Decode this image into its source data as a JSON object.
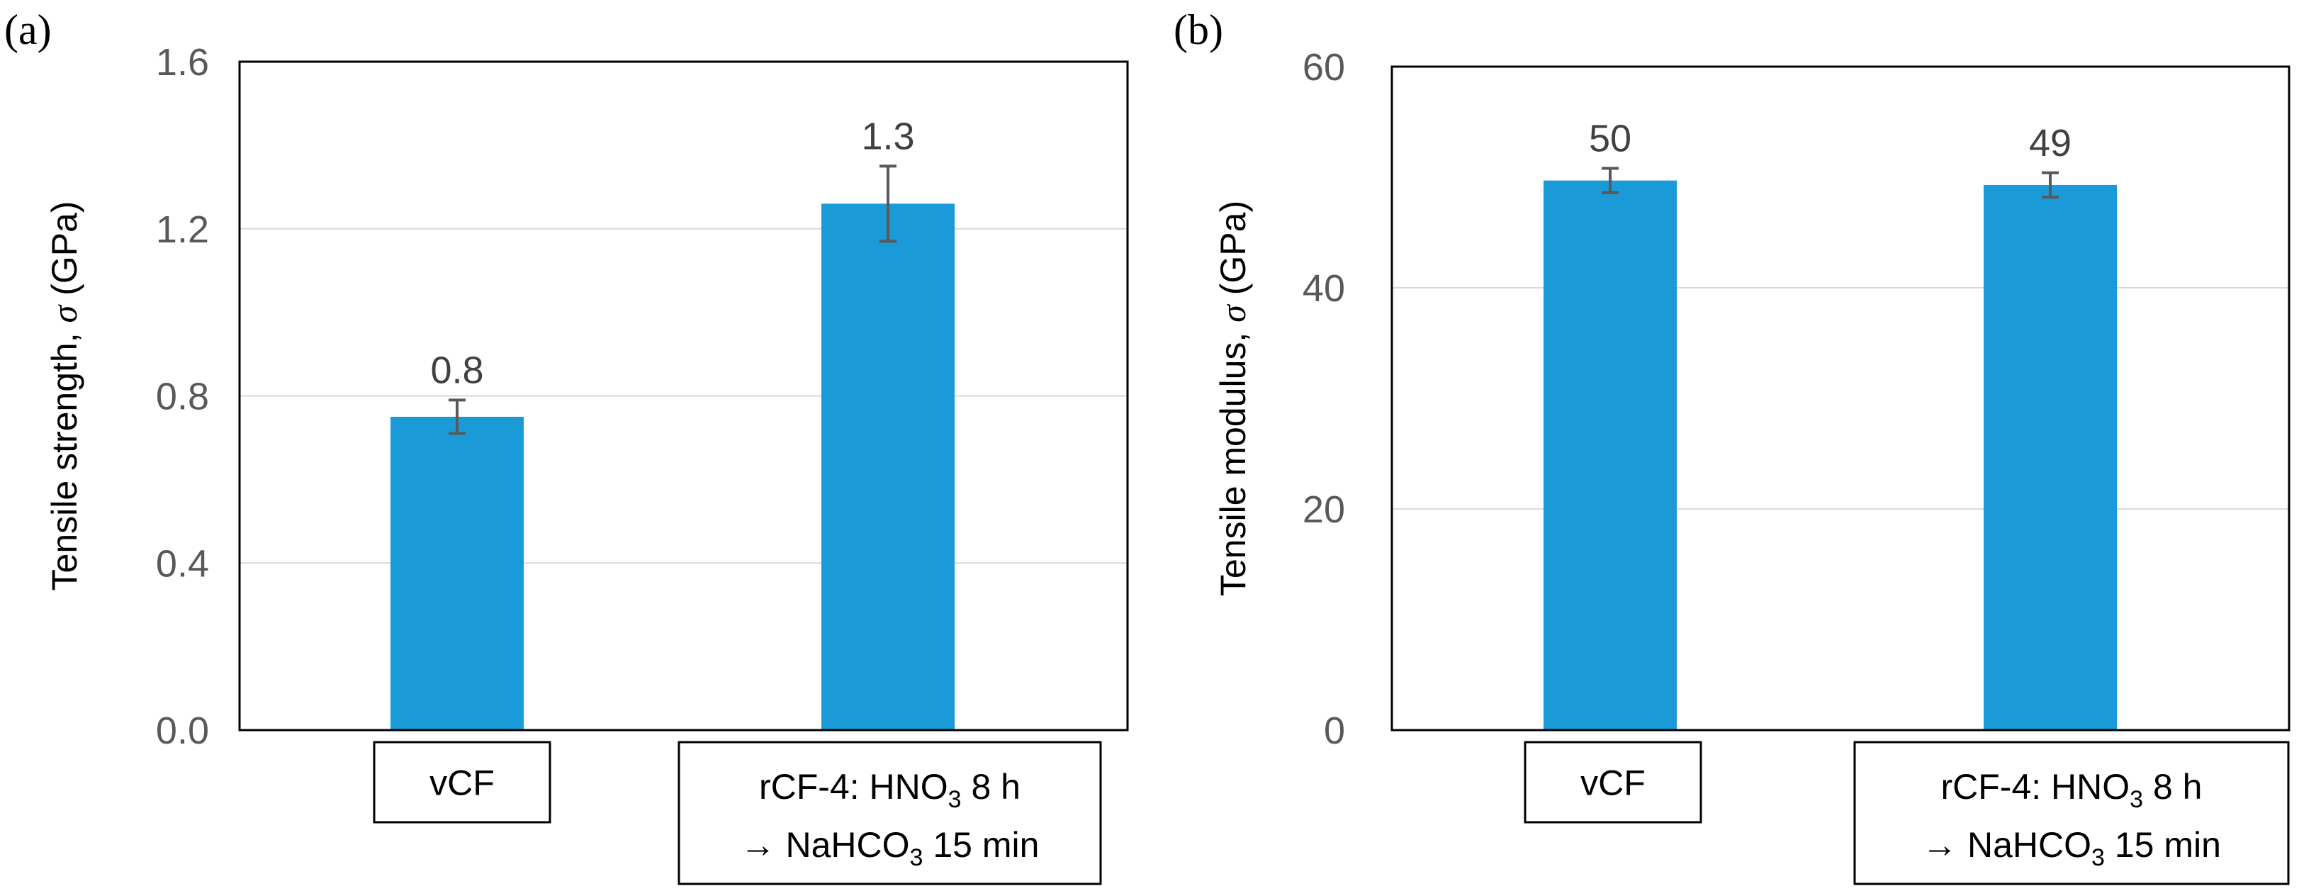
{
  "chart_data": [
    {
      "type": "bar",
      "panel_label": "(a)",
      "ylabel": "Tensile strength,",
      "ylabel_symbol": "σ",
      "ylabel_unit": "(GPa)",
      "ylim": [
        0,
        1.6
      ],
      "yticks": [
        "0.0",
        "0.4",
        "0.8",
        "1.2",
        "1.6"
      ],
      "ytick_values": [
        0,
        0.4,
        0.8,
        1.2,
        1.6
      ],
      "grid": true,
      "color": "#1a9ad6",
      "categories": [
        {
          "line1": "vCF",
          "line2": ""
        },
        {
          "line1": "rCF-4: HNO",
          "line1_sub": "3",
          "line1_end": " 8 h",
          "line2_pre": "→ NaHCO",
          "line2_sub": "3",
          "line2_end": " 15 min"
        }
      ],
      "values": [
        0.75,
        1.26
      ],
      "errors": [
        0.04,
        0.09
      ],
      "data_labels": [
        "0.8",
        "1.3"
      ]
    },
    {
      "type": "bar",
      "panel_label": "(b)",
      "ylabel": "Tensile modulus,",
      "ylabel_symbol": "σ",
      "ylabel_unit": "(GPa)",
      "ylim": [
        0,
        60
      ],
      "yticks": [
        "0",
        "20",
        "40",
        "60"
      ],
      "ytick_values": [
        0,
        20,
        40,
        60
      ],
      "grid": true,
      "color": "#1a9ad6",
      "categories": [
        {
          "line1": "vCF",
          "line2": ""
        },
        {
          "line1": "rCF-4: HNO",
          "line1_sub": "3",
          "line1_end": " 8 h",
          "line2_pre": "→ NaHCO",
          "line2_sub": "3",
          "line2_end": " 15 min"
        }
      ],
      "values": [
        49.7,
        49.3
      ],
      "errors": [
        1.1,
        1.1
      ],
      "data_labels": [
        "50",
        "49"
      ]
    }
  ]
}
